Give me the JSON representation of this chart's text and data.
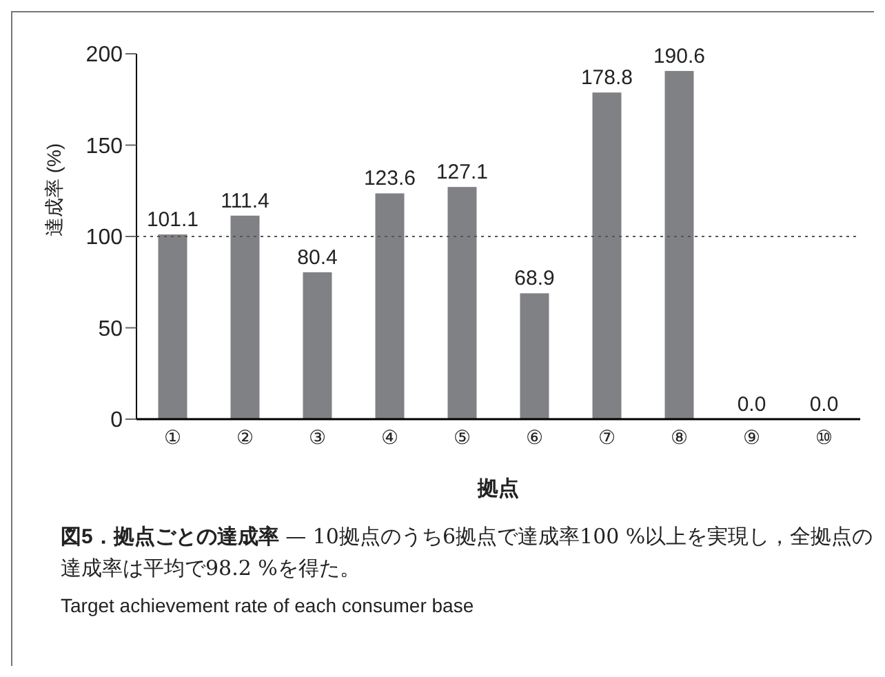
{
  "chart_data": {
    "type": "bar",
    "title": "図5．拠点ごとの達成率",
    "subtitle": "— 10拠点のうち6拠点で達成率100 %以上を実現し，全拠点の達成率は平均で98.2 %を得た。",
    "annotations": [
      "Target achievement rate of each consumer base"
    ],
    "xlabel": "拠点",
    "ylabel": "達成率 (%)",
    "categories": [
      "①",
      "②",
      "③",
      "④",
      "⑤",
      "⑥",
      "⑦",
      "⑧",
      "⑨",
      "⑩"
    ],
    "values": [
      101.1,
      111.4,
      80.4,
      123.6,
      127.1,
      68.9,
      178.8,
      190.6,
      0.0,
      0.0
    ],
    "value_labels": [
      "101.1",
      "111.4",
      "80.4",
      "123.6",
      "127.1",
      "68.9",
      "178.8",
      "190.6",
      "0.0",
      "0.0"
    ],
    "color": "#808185",
    "ylim": [
      0,
      200
    ],
    "yticks": [
      0,
      50,
      100,
      150,
      200
    ],
    "grid": false,
    "legend": false,
    "ref_lines": [
      {
        "axis": "y",
        "value": 100,
        "line_style": "dotted",
        "color": "#555555"
      }
    ]
  }
}
